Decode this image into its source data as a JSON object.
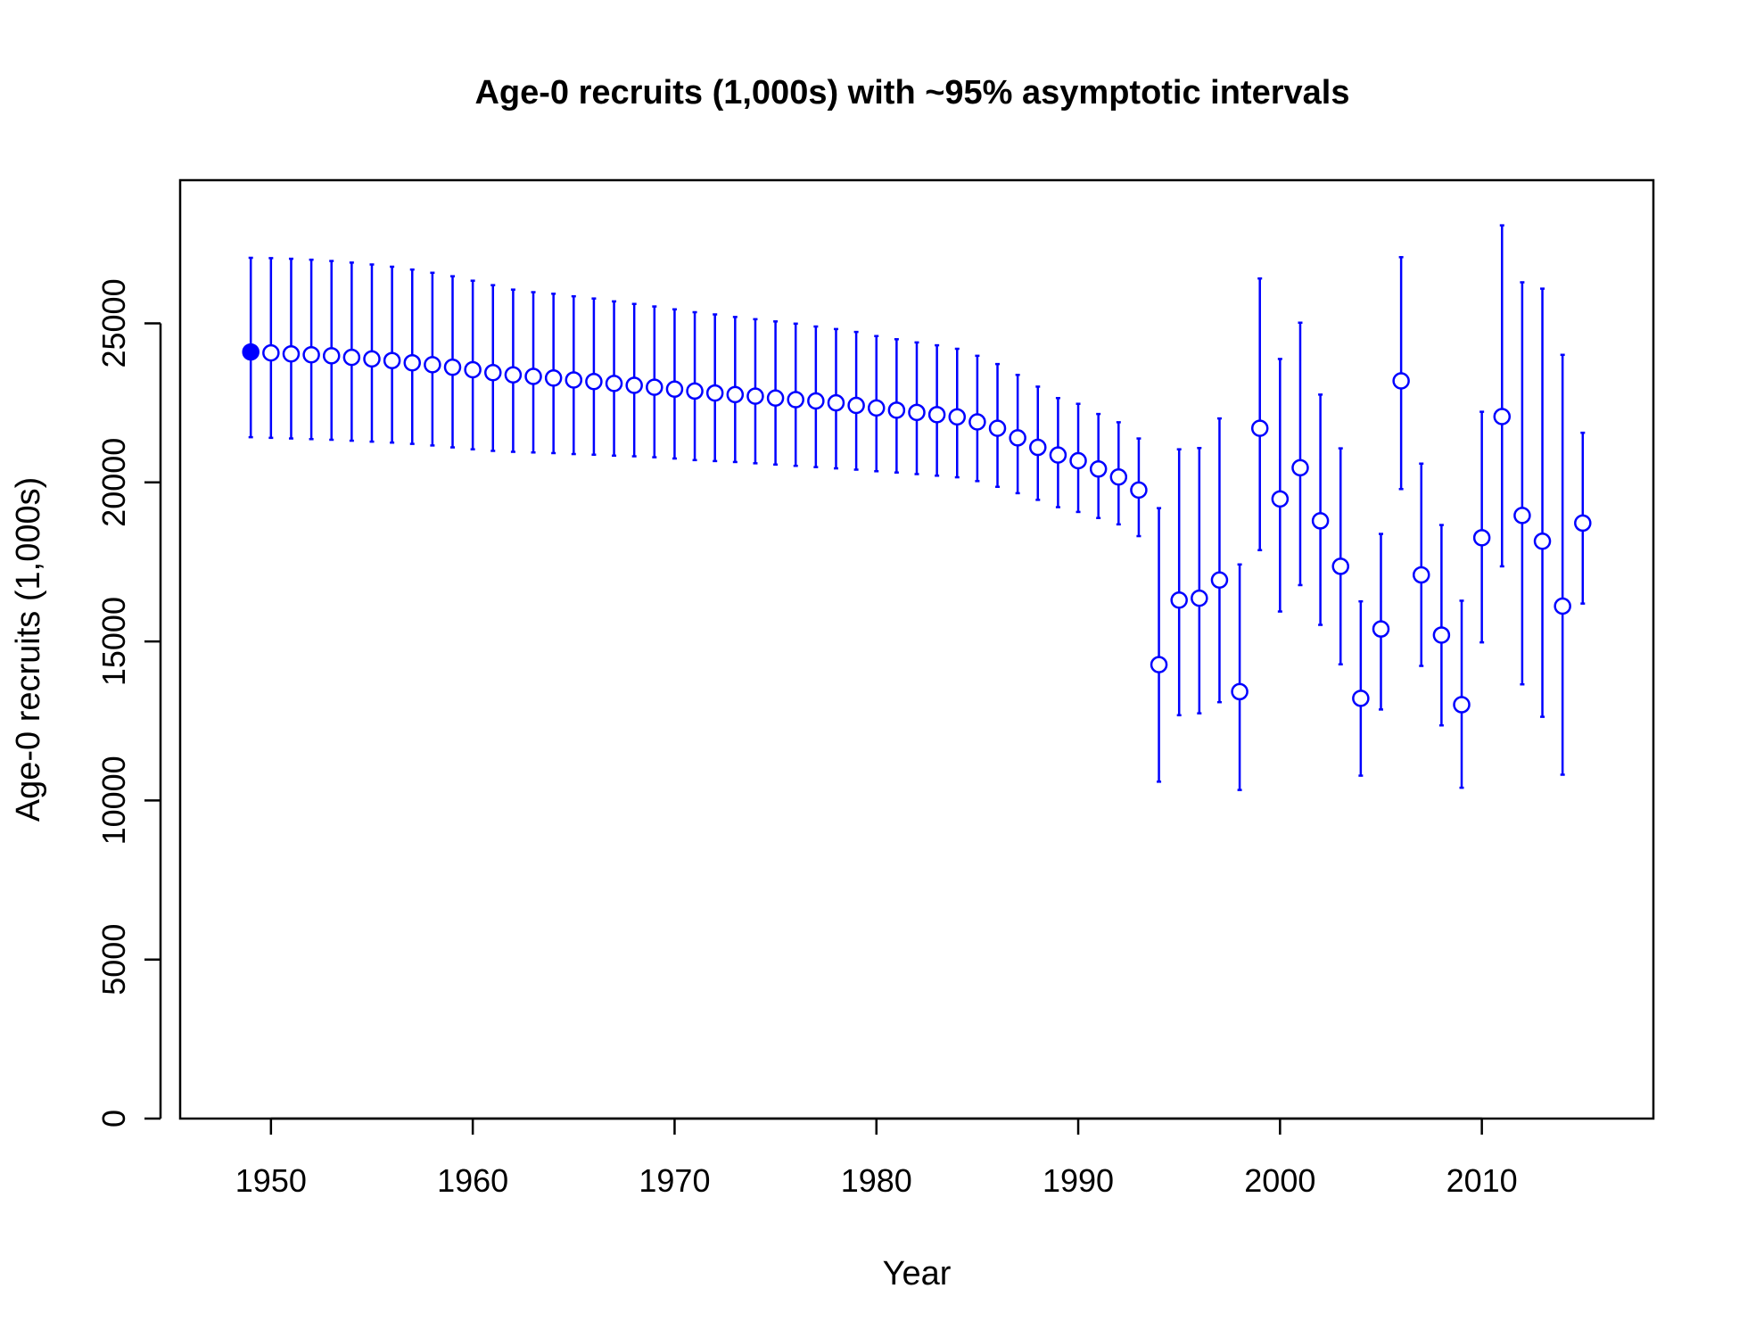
{
  "chart_data": {
    "type": "scatter",
    "title": "Age-0 recruits (1,000s) with ~95% asymptotic intervals",
    "xlabel": "Year",
    "ylabel": "Age-0 recruits (1,000s)",
    "xlim": [
      1945.5,
      2018.5
    ],
    "ylim": [
      0,
      29500
    ],
    "x_ticks": [
      1950,
      1960,
      1970,
      1980,
      1990,
      2000,
      2010
    ],
    "x_tick_labels": [
      "1950",
      "1960",
      "1970",
      "1980",
      "1990",
      "2000",
      "2010"
    ],
    "y_ticks": [
      0,
      5000,
      10000,
      15000,
      20000,
      25000
    ],
    "y_tick_labels": [
      "0",
      "5000",
      "10000",
      "15000",
      "20000",
      "25000"
    ],
    "grid": false,
    "legend": "none",
    "color": "#0000ff",
    "marker_note": "first point (1949) filled circle, others open circles",
    "series": [
      {
        "x": [
          1949,
          1950,
          1951,
          1952,
          1953,
          1954,
          1955,
          1956,
          1957,
          1958,
          1959,
          1960,
          1961,
          1962,
          1963,
          1964,
          1965,
          1966,
          1967,
          1968,
          1969,
          1970,
          1971,
          1972,
          1973,
          1974,
          1975,
          1976,
          1977,
          1978,
          1979,
          1980,
          1981,
          1982,
          1983,
          1984,
          1985,
          1986,
          1987,
          1988,
          1989,
          1990,
          1991,
          1992,
          1993,
          1994,
          1995,
          1996,
          1997,
          1998,
          1999,
          2000,
          2001,
          2002,
          2003,
          2004,
          2005,
          2006,
          2007,
          2008,
          2009,
          2010,
          2011,
          2012,
          2013,
          2014,
          2015
        ],
        "y": [
          24100,
          24070,
          24040,
          24010,
          23980,
          23930,
          23880,
          23830,
          23760,
          23700,
          23620,
          23540,
          23450,
          23380,
          23330,
          23280,
          23220,
          23170,
          23110,
          23050,
          22990,
          22930,
          22870,
          22810,
          22760,
          22710,
          22650,
          22600,
          22560,
          22500,
          22420,
          22340,
          22270,
          22200,
          22130,
          22060,
          21900,
          21700,
          21400,
          21100,
          20860,
          20680,
          20420,
          20170,
          19760,
          14270,
          16300,
          16360,
          16930,
          13420,
          21700,
          19480,
          20460,
          18790,
          17360,
          13210,
          15390,
          23190,
          17090,
          15200,
          13010,
          18260,
          22070,
          18960,
          18150,
          16110,
          18720
        ],
        "lower": [
          21420,
          21400,
          21380,
          21360,
          21340,
          21310,
          21280,
          21250,
          21210,
          21160,
          21100,
          21040,
          20990,
          20960,
          20940,
          20920,
          20890,
          20870,
          20840,
          20820,
          20790,
          20750,
          20700,
          20670,
          20640,
          20600,
          20560,
          20520,
          20480,
          20440,
          20400,
          20350,
          20310,
          20260,
          20210,
          20160,
          20040,
          19860,
          19660,
          19450,
          19220,
          19070,
          18880,
          18680,
          18310,
          10590,
          12680,
          12740,
          13090,
          10330,
          17870,
          15940,
          16770,
          15520,
          14280,
          10780,
          12860,
          19790,
          14230,
          12360,
          10400,
          14970,
          17360,
          13650,
          12630,
          10810,
          16190
        ],
        "upper": [
          27060,
          27050,
          27030,
          27000,
          26960,
          26910,
          26850,
          26780,
          26690,
          26590,
          26480,
          26340,
          26200,
          26060,
          25980,
          25930,
          25850,
          25780,
          25690,
          25610,
          25530,
          25440,
          25350,
          25280,
          25200,
          25130,
          25060,
          24990,
          24900,
          24820,
          24730,
          24600,
          24500,
          24400,
          24310,
          24200,
          23980,
          23720,
          23380,
          23010,
          22650,
          22470,
          22150,
          21890,
          21380,
          19190,
          21040,
          21080,
          22010,
          17420,
          26410,
          23880,
          25020,
          22760,
          21070,
          16260,
          18380,
          27080,
          20590,
          18660,
          16280,
          22220,
          28080,
          26290,
          26090,
          24010,
          21560
        ]
      }
    ]
  }
}
